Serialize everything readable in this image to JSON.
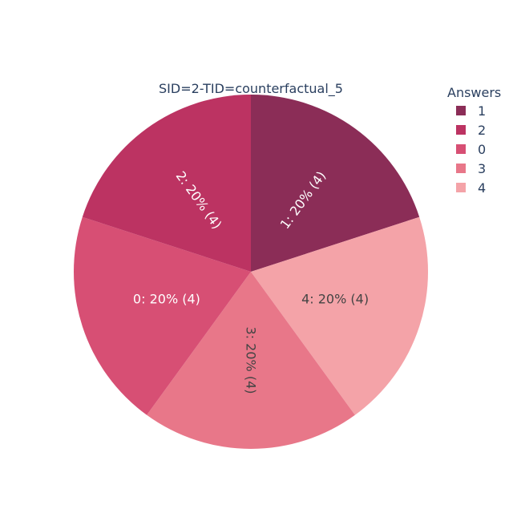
{
  "chart_data": {
    "type": "pie",
    "subtitle": "SID=2-TID=counterfactual_5",
    "legend": {
      "title": "Answers",
      "placement": "top-right",
      "items": [
        {
          "label": "1",
          "color": "#8b2d57"
        },
        {
          "label": "2",
          "color": "#bc3362"
        },
        {
          "label": "0",
          "color": "#d74f74"
        },
        {
          "label": "3",
          "color": "#e87789"
        },
        {
          "label": "4",
          "color": "#f4a3a8"
        }
      ]
    },
    "slices": [
      {
        "label": "1",
        "value": 4,
        "percent": 20,
        "color": "#8b2d57",
        "text": "1: 20% (4)",
        "text_color": "#ffffff"
      },
      {
        "label": "4",
        "value": 4,
        "percent": 20,
        "color": "#f4a3a8",
        "text": "4: 20% (4)",
        "text_color": "#444444"
      },
      {
        "label": "3",
        "value": 4,
        "percent": 20,
        "color": "#e87789",
        "text": "3: 20% (4)",
        "text_color": "#444444"
      },
      {
        "label": "0",
        "value": 4,
        "percent": 20,
        "color": "#d74f74",
        "text": "0: 20% (4)",
        "text_color": "#ffffff"
      },
      {
        "label": "2",
        "value": 4,
        "percent": 20,
        "color": "#bc3362",
        "text": "2: 20% (4)",
        "text_color": "#ffffff"
      }
    ],
    "direction": "clockwise",
    "start_angle_deg": 0
  }
}
